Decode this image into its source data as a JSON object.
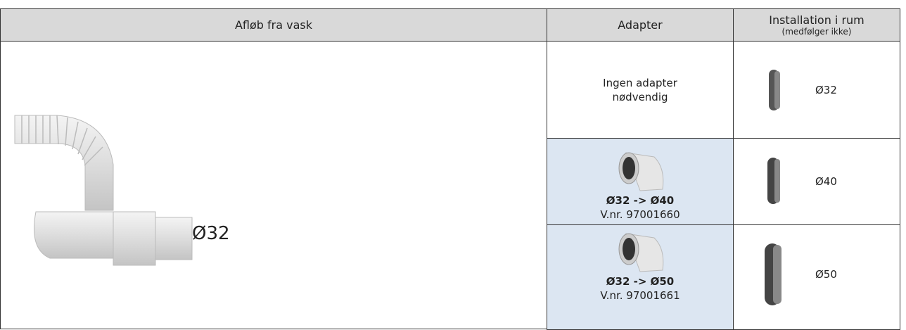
{
  "header": {
    "drain": "Afløb fra vask",
    "adapter": "Adapter",
    "installation": "Installation i rum",
    "installation_note": "(medfølger ikke)"
  },
  "drain": {
    "size": "Ø32"
  },
  "rows": [
    {
      "adapter": [
        "Ingen adapter",
        "nødvendig"
      ],
      "installation": "Ø32"
    },
    {
      "adapter_name": "Ø32 -> Ø40",
      "part_number": "V.nr. 97001660",
      "installation": "Ø40"
    },
    {
      "adapter_name": "Ø32 -> Ø50",
      "part_number": "V.nr. 97001661",
      "installation": "Ø50"
    }
  ]
}
